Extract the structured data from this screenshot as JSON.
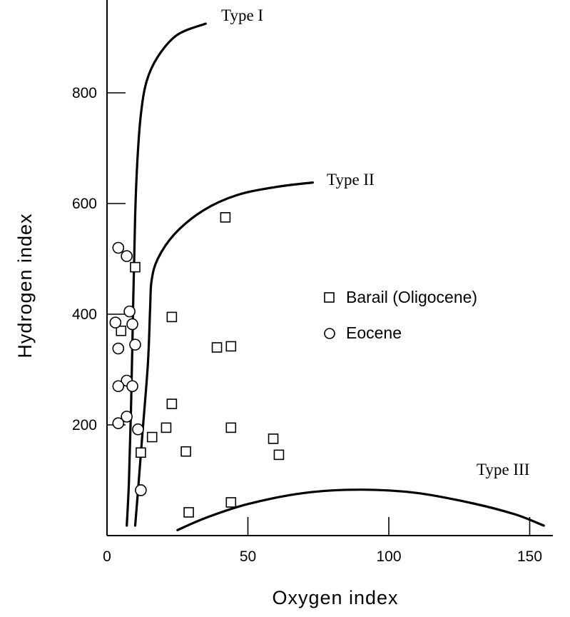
{
  "chart_data": {
    "type": "scatter",
    "xlabel": "Oxygen index",
    "ylabel": "Hydrogen index",
    "xlim": [
      0,
      155
    ],
    "ylim": [
      0,
      950
    ],
    "x_ticks": [
      0,
      50,
      100,
      150
    ],
    "y_ticks": [
      200,
      400,
      600,
      800
    ],
    "grid": false,
    "legend_position": "right-middle",
    "series": [
      {
        "name": "Barail (Oligocene)",
        "marker": "square",
        "points": [
          {
            "x": 42,
            "y": 575
          },
          {
            "x": 10,
            "y": 485
          },
          {
            "x": 23,
            "y": 395
          },
          {
            "x": 5,
            "y": 370
          },
          {
            "x": 39,
            "y": 340
          },
          {
            "x": 44,
            "y": 342
          },
          {
            "x": 23,
            "y": 238
          },
          {
            "x": 21,
            "y": 195
          },
          {
            "x": 44,
            "y": 195
          },
          {
            "x": 16,
            "y": 178
          },
          {
            "x": 59,
            "y": 175
          },
          {
            "x": 12,
            "y": 150
          },
          {
            "x": 28,
            "y": 152
          },
          {
            "x": 61,
            "y": 146
          },
          {
            "x": 44,
            "y": 60
          },
          {
            "x": 29,
            "y": 42
          }
        ]
      },
      {
        "name": "Eocene",
        "marker": "circle",
        "points": [
          {
            "x": 4,
            "y": 520
          },
          {
            "x": 7,
            "y": 505
          },
          {
            "x": 8,
            "y": 405
          },
          {
            "x": 3,
            "y": 385
          },
          {
            "x": 9,
            "y": 382
          },
          {
            "x": 10,
            "y": 345
          },
          {
            "x": 4,
            "y": 338
          },
          {
            "x": 7,
            "y": 280
          },
          {
            "x": 4,
            "y": 270
          },
          {
            "x": 9,
            "y": 270
          },
          {
            "x": 7,
            "y": 215
          },
          {
            "x": 4,
            "y": 203
          },
          {
            "x": 11,
            "y": 192
          },
          {
            "x": 12,
            "y": 82
          }
        ]
      }
    ],
    "curves": [
      {
        "label": "Type I",
        "points": [
          [
            7,
            18
          ],
          [
            7.8,
            100
          ],
          [
            8.6,
            250
          ],
          [
            9.3,
            420
          ],
          [
            10,
            580
          ],
          [
            10.8,
            680
          ],
          [
            12,
            760
          ],
          [
            14,
            820
          ],
          [
            18,
            865
          ],
          [
            25,
            905
          ],
          [
            35,
            925
          ]
        ]
      },
      {
        "label": "Type II",
        "points": [
          [
            10,
            18
          ],
          [
            11,
            80
          ],
          [
            12.5,
            180
          ],
          [
            14.5,
            310
          ],
          [
            15.3,
            410
          ],
          [
            15.8,
            460
          ],
          [
            18,
            500
          ],
          [
            24,
            545
          ],
          [
            34,
            587
          ],
          [
            46,
            615
          ],
          [
            60,
            630
          ],
          [
            73,
            638
          ]
        ]
      },
      {
        "label": "Type III",
        "points": [
          [
            25,
            10
          ],
          [
            35,
            32
          ],
          [
            50,
            57
          ],
          [
            70,
            77
          ],
          [
            90,
            83
          ],
          [
            110,
            77
          ],
          [
            130,
            58
          ],
          [
            145,
            38
          ],
          [
            155,
            18
          ]
        ]
      }
    ]
  }
}
